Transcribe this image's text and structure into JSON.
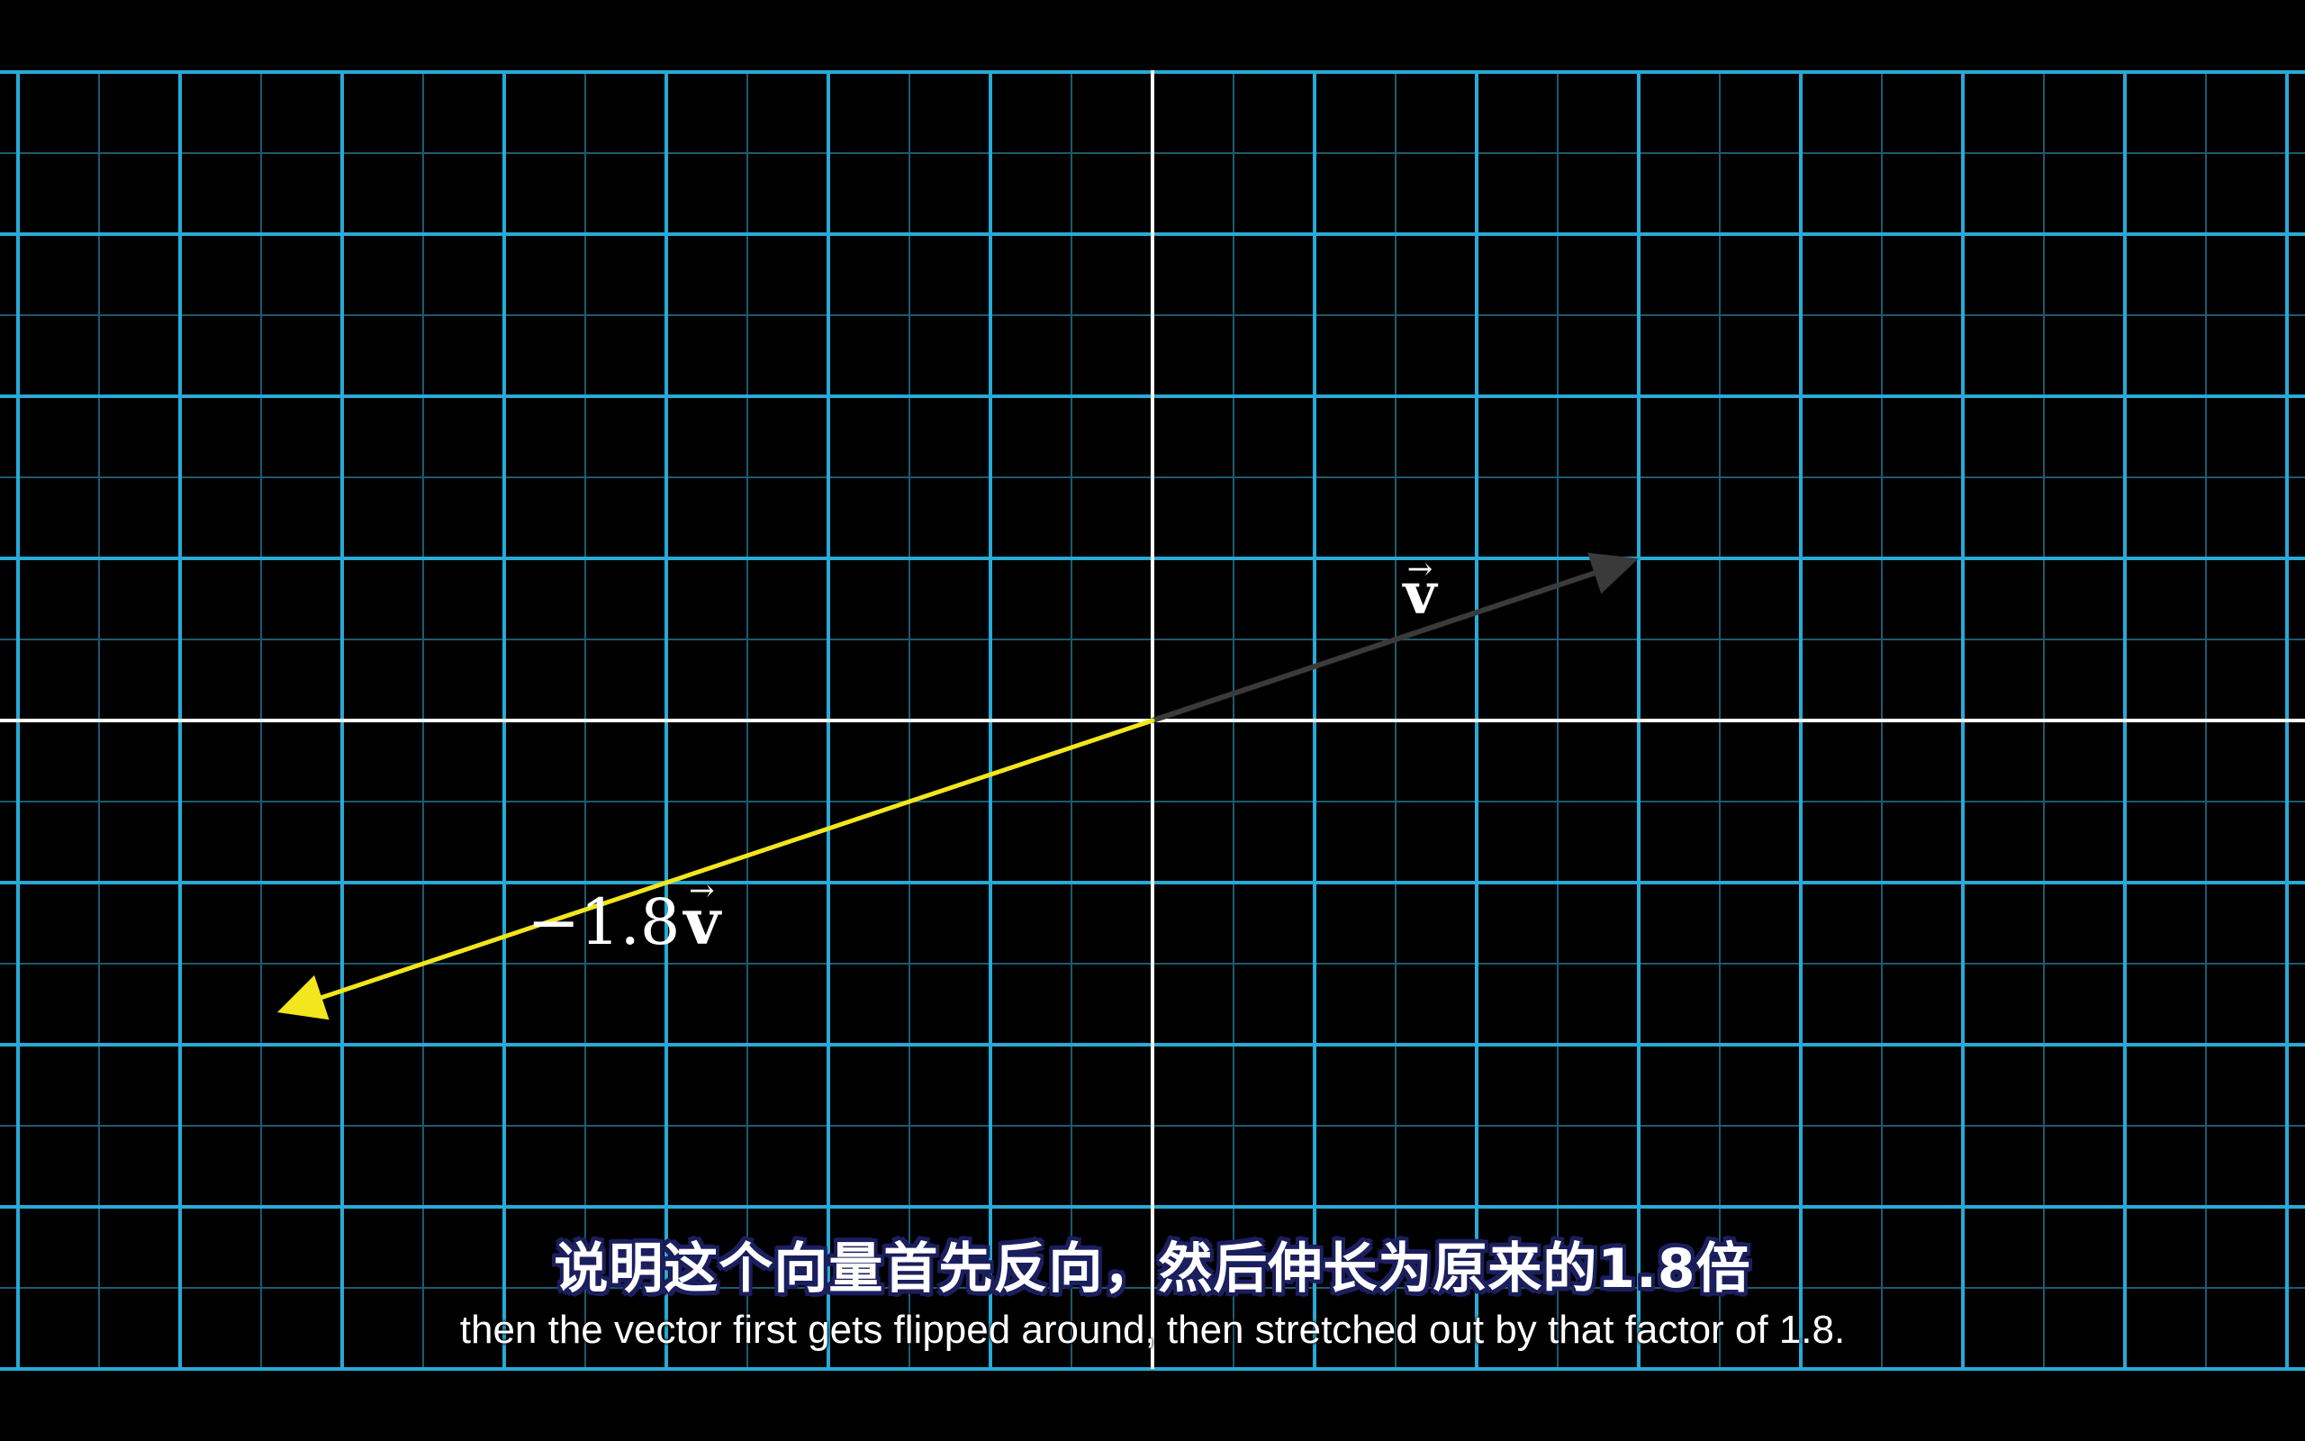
{
  "scene": {
    "background_color": "#000000",
    "grid_major_color": "#29a9d6",
    "grid_minor_color": "#1d5a70",
    "axis_color": "#ffffff",
    "vector_v": {
      "label": "⃗v",
      "display": "v",
      "color": "#3a3a3a",
      "x": 3,
      "y": 1
    },
    "vector_scaled": {
      "label": "−1.8v",
      "coefficient": "−1.8",
      "symbol": "v",
      "color": "#f2e61c",
      "x": -5.4,
      "y": -1.8
    }
  },
  "subtitles": {
    "chinese": "说明这个向量首先反向，然后伸长为原来的1.8倍",
    "english": "then the vector first gets flipped around, then stretched out by that factor of 1.8."
  }
}
